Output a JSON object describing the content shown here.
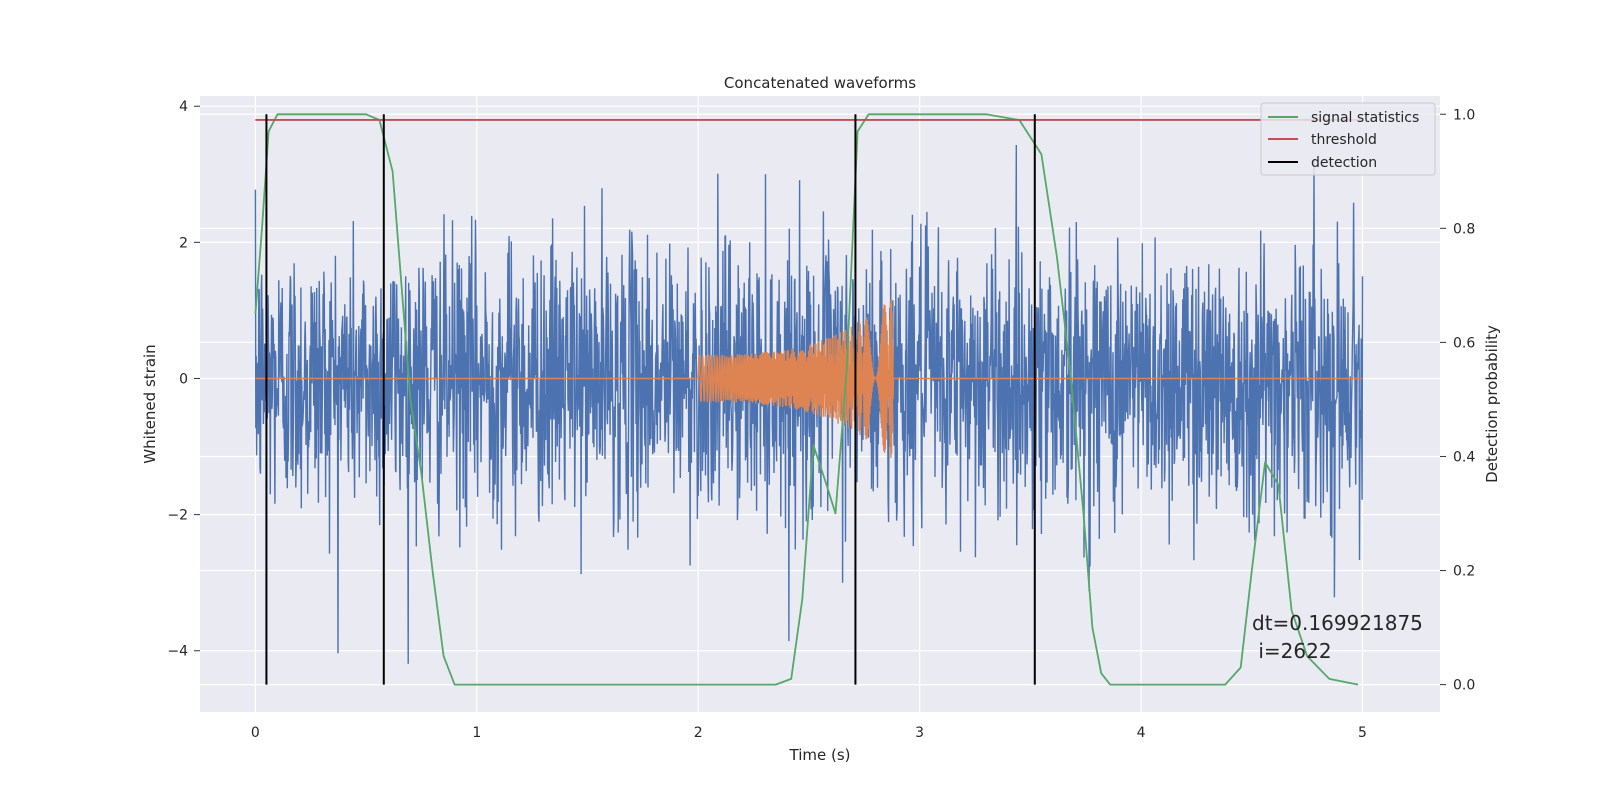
{
  "chart_data": {
    "type": "line",
    "title": "Concatenated waveforms",
    "xlabel": "Time (s)",
    "ylabel": "Whitened strain",
    "ylabel_right": "Detection probability",
    "xlim": [
      -0.25,
      5.35
    ],
    "ylim": [
      -4.9,
      4.15
    ],
    "ylim_right": [
      -0.048,
      1.032
    ],
    "x_ticks": [
      0,
      1,
      2,
      3,
      4,
      5
    ],
    "y_ticks": [
      -4,
      -2,
      0,
      2,
      4
    ],
    "y_ticks_right": [
      0.0,
      0.2,
      0.4,
      0.6,
      0.8,
      1.0
    ],
    "y_tick_labels": [
      "−4",
      "−2",
      "0",
      "2",
      "4"
    ],
    "y_tick_labels_right": [
      "0.0",
      "0.2",
      "0.4",
      "0.6",
      "0.8",
      "1.0"
    ],
    "grid": true,
    "background": "#eaeaf2",
    "legend_position": "top-right",
    "legend": [
      {
        "label": "signal statistics",
        "color": "#55a868"
      },
      {
        "label": "threshold",
        "color": "#c44e52"
      },
      {
        "label": "detection",
        "color": "#000000"
      }
    ],
    "annotation": [
      "dt=0.169921875",
      " i=2622"
    ],
    "series": [
      {
        "description": "whitened noisy strain (blue)",
        "color": "#4c72b0",
        "axis": "left",
        "x_range": [
          0,
          5
        ],
        "amplitude_typical": 1.0,
        "max": 3.75,
        "min": -4.5
      },
      {
        "description": "injected chirp signal (orange)",
        "color": "#dd8452",
        "axis": "left",
        "x_range": [
          0,
          5
        ],
        "chirp_start": 2.0,
        "chirp_end": 2.88,
        "start_amplitude": 0.35,
        "end_amplitude": 1.2
      },
      {
        "name": "signal statistics",
        "color": "#55a868",
        "axis": "right",
        "x": [
          0.0,
          0.03,
          0.06,
          0.1,
          0.15,
          0.5,
          0.56,
          0.62,
          0.66,
          0.7,
          0.75,
          0.8,
          0.85,
          0.9,
          2.35,
          2.42,
          2.47,
          2.52,
          2.58,
          2.62,
          2.67,
          2.72,
          2.77,
          3.3,
          3.45,
          3.55,
          3.62,
          3.68,
          3.74,
          3.78,
          3.82,
          3.86,
          4.38,
          4.45,
          4.5,
          4.56,
          4.62,
          4.68,
          4.75,
          4.85,
          4.98
        ],
        "values": [
          0.65,
          0.8,
          0.97,
          1.0,
          1.0,
          1.0,
          0.99,
          0.9,
          0.7,
          0.5,
          0.37,
          0.2,
          0.05,
          0.0,
          0.0,
          0.01,
          0.15,
          0.42,
          0.35,
          0.3,
          0.55,
          0.97,
          1.0,
          1.0,
          0.99,
          0.93,
          0.75,
          0.55,
          0.3,
          0.1,
          0.02,
          0.0,
          0.0,
          0.03,
          0.2,
          0.39,
          0.35,
          0.13,
          0.05,
          0.01,
          0.0
        ]
      },
      {
        "name": "threshold",
        "color": "#c44e52",
        "axis": "right",
        "x": [
          0,
          5
        ],
        "values": [
          0.99,
          0.99
        ]
      }
    ],
    "detections": [
      0.05,
      0.58,
      2.71,
      3.52
    ],
    "detection_range": [
      0.0,
      1.0
    ]
  }
}
